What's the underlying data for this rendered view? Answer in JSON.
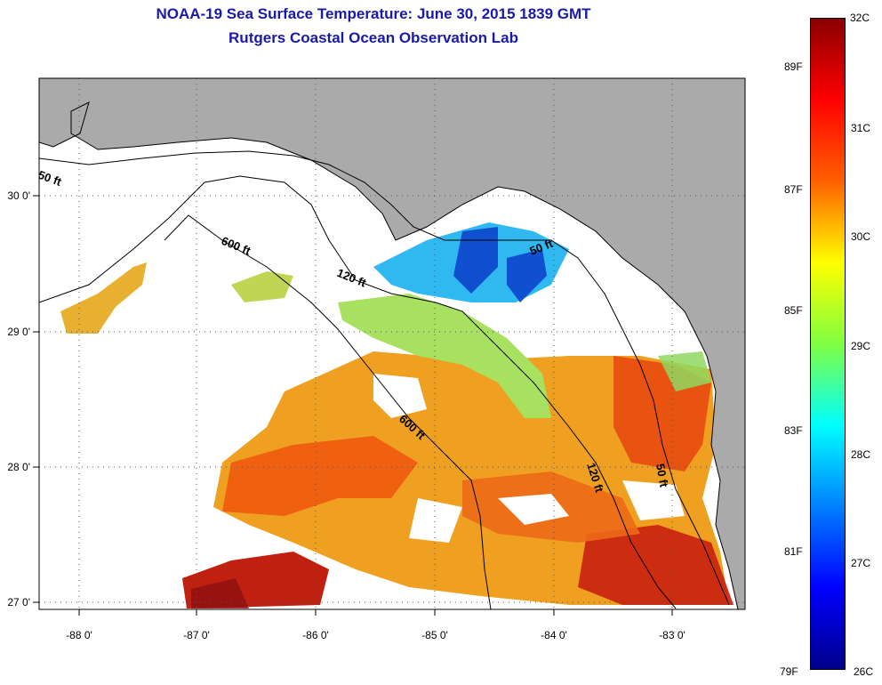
{
  "title": {
    "line1": "NOAA-19 Sea Surface Temperature:  June 30, 2015 1839 GMT",
    "line2": "Rutgers Coastal Ocean Observation Lab"
  },
  "colors": {
    "land": "#aaaaaa",
    "title": "#1a1aa8",
    "contour": "#000000"
  },
  "map": {
    "lon_ticks": [
      "-88 0'",
      "-87 0'",
      "-86 0'",
      "-85 0'",
      "-84 0'",
      "-83 0'"
    ],
    "lat_ticks": [
      "30 0'",
      "29 0'",
      "28 0'",
      "27 0'"
    ],
    "depth_labels": [
      "50 ft",
      "600 ft",
      "120 ft",
      "50 ft",
      "600 ft",
      "120 ft",
      "50 ft"
    ]
  },
  "colorbar": {
    "top_label": "32C",
    "bottom_left_label": "79F",
    "bottom_right_label": "26C",
    "fahrenheit": [
      "89F",
      "87F",
      "85F",
      "83F",
      "81F"
    ],
    "celsius": [
      "31C",
      "30C",
      "29C",
      "28C",
      "27C"
    ],
    "gradient": [
      "#8b0000",
      "#ff0000",
      "#ff6000",
      "#ffff00",
      "#80ff40",
      "#00ffff",
      "#0080ff",
      "#0000ff",
      "#00008b"
    ]
  }
}
